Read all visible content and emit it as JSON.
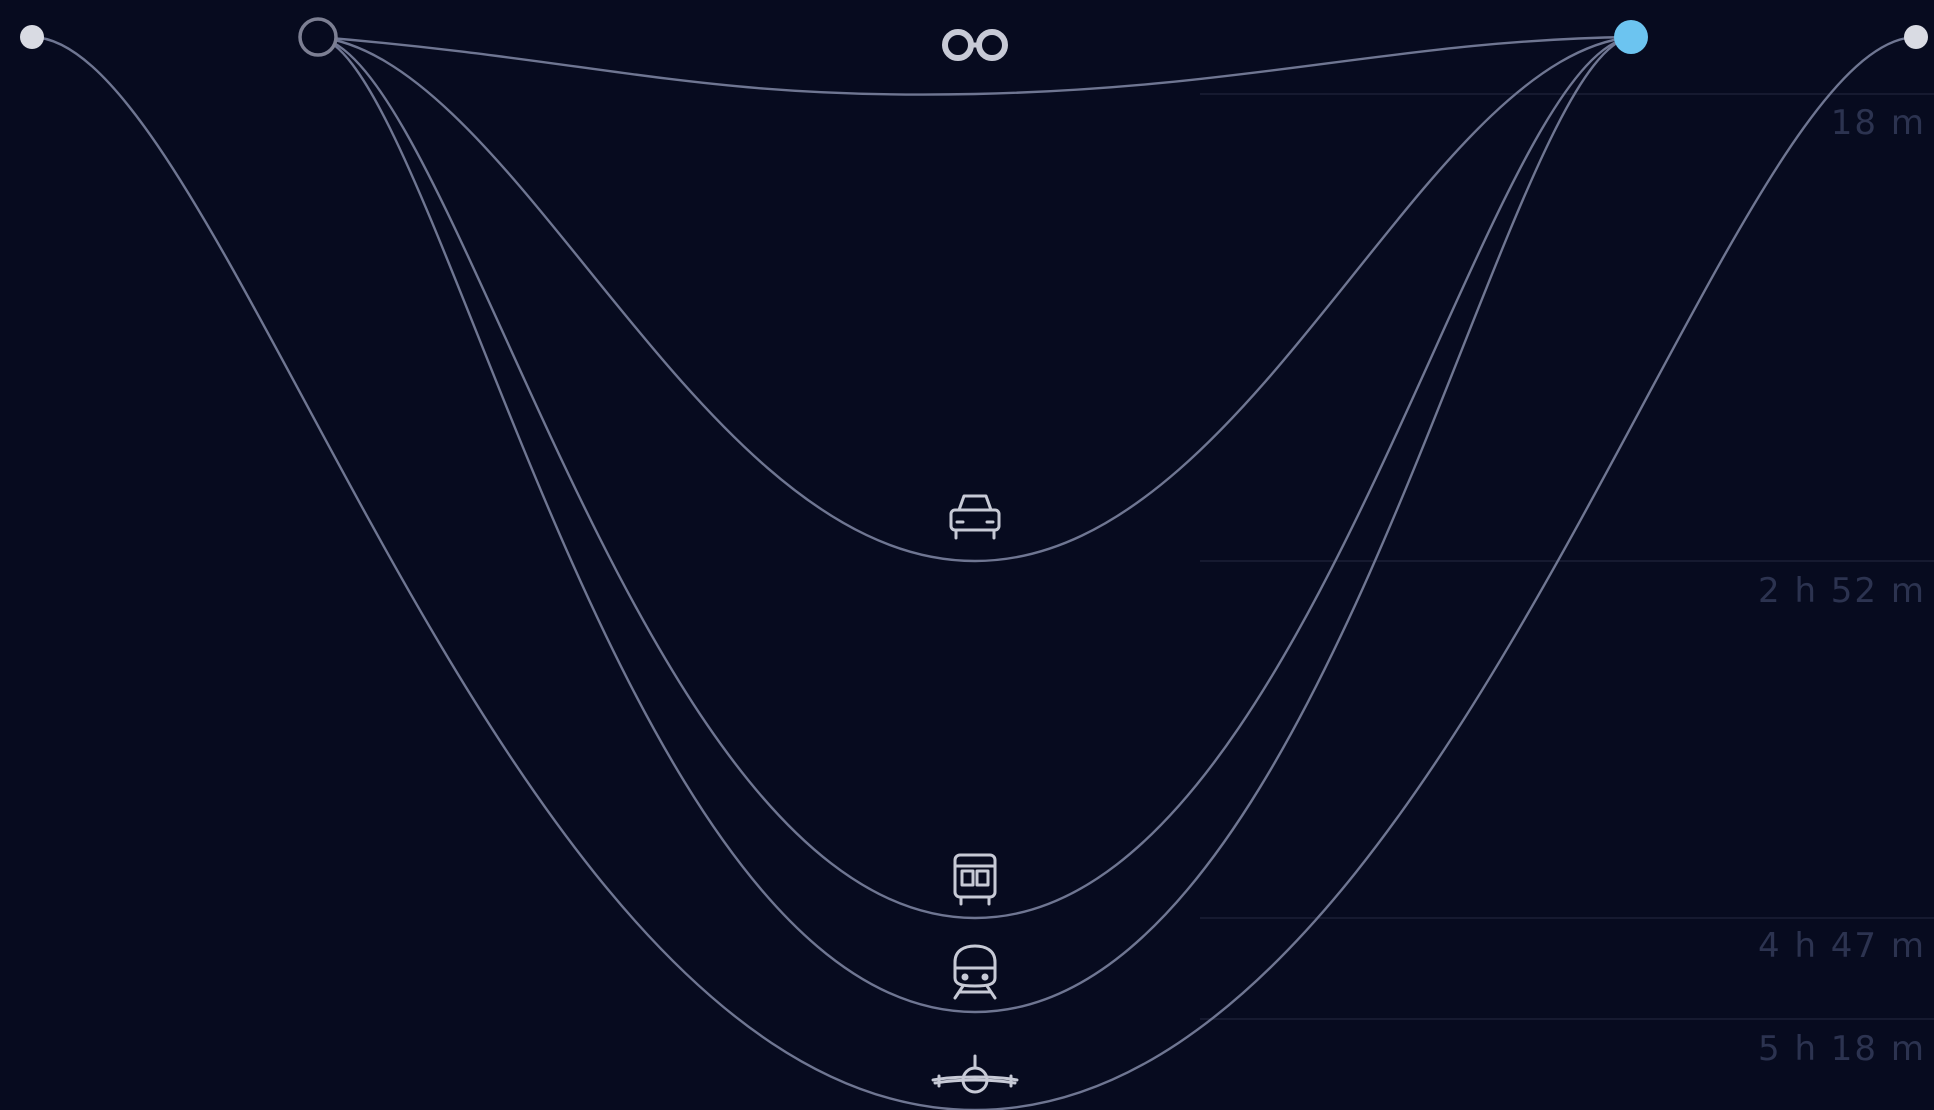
{
  "colors": {
    "background": "#070b1f",
    "curve": "#6f7692",
    "guide": "#1b2036",
    "label": "#2c3350",
    "icon": "#c7cad6",
    "node_light": "#d9dbe3",
    "node_accent": "#6cc4f0",
    "node_ring": "#7c7f93"
  },
  "nodes": [
    {
      "id": "outer-start",
      "style": "filled-light"
    },
    {
      "id": "inner-start",
      "style": "ring"
    },
    {
      "id": "inner-end",
      "style": "filled-accent"
    },
    {
      "id": "outer-end",
      "style": "filled-light"
    }
  ],
  "routes": [
    {
      "mode": "bike",
      "icon": "bicycle-icon",
      "duration": "18 m"
    },
    {
      "mode": "car",
      "icon": "car-icon",
      "duration": "2 h  52 m"
    },
    {
      "mode": "bus",
      "icon": "bus-icon",
      "duration": ""
    },
    {
      "mode": "train",
      "icon": "train-icon",
      "duration": "4 h  47 m"
    },
    {
      "mode": "plane",
      "icon": "plane-icon",
      "duration": "5 h  18 m"
    }
  ]
}
